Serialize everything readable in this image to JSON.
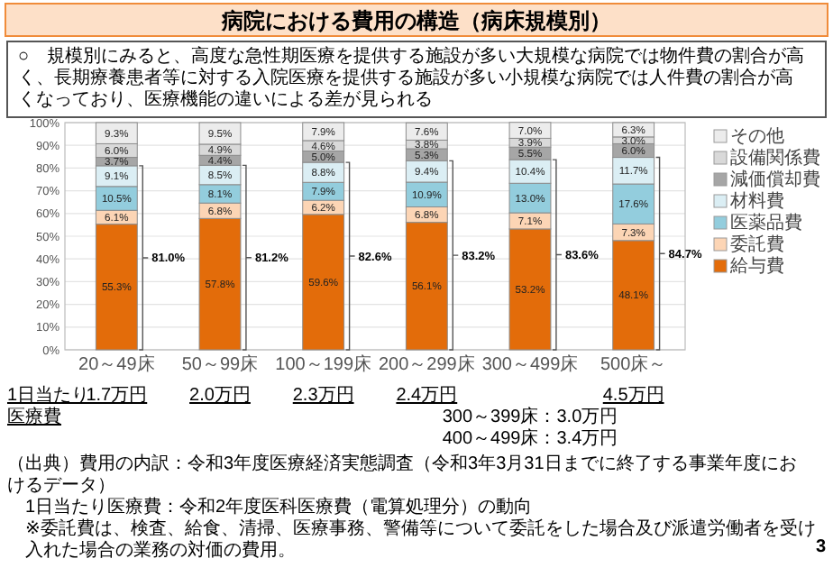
{
  "chart_data": {
    "type": "bar",
    "stacked": true,
    "title": "病院における費用の構造（病床規模別）",
    "subtitle": "○　規模別にみると、高度な急性期医療を提供する施設が多い大規模な病院では物件費の割合が高く、長期療養患者等に対する入院医療を提供する施設が多い小規模な病院では人件費の割合が高くなっており、医療機能の違いによる差が見られる",
    "categories": [
      "20～49床",
      "50～99床",
      "100～199床",
      "200～299床",
      "300～499床",
      "500床～"
    ],
    "series": [
      {
        "name": "給与費",
        "color": "#e36c0a",
        "values": [
          55.3,
          57.8,
          59.6,
          56.1,
          53.2,
          48.1
        ],
        "value_labels": [
          "55.3%",
          "57.8%",
          "59.6%",
          "56.1%",
          "53.2%",
          "48.1%"
        ]
      },
      {
        "name": "委託費",
        "color": "#fcd5b5",
        "values": [
          6.1,
          6.8,
          6.2,
          6.8,
          7.1,
          7.3
        ],
        "value_labels": [
          "6.1%",
          "6.8%",
          "6.2%",
          "6.8%",
          "7.1%",
          "7.3%"
        ]
      },
      {
        "name": "医薬品費",
        "color": "#93cddd",
        "values": [
          10.5,
          8.1,
          7.9,
          10.9,
          13.0,
          17.6
        ],
        "value_labels": [
          "10.5%",
          "8.1%",
          "7.9%",
          "10.9%",
          "13.0%",
          "17.6%"
        ]
      },
      {
        "name": "材料費",
        "color": "#dbeef4",
        "values": [
          9.1,
          8.5,
          8.8,
          9.4,
          10.4,
          11.7
        ],
        "value_labels": [
          "9.1%",
          "8.5%",
          "8.8%",
          "9.4%",
          "10.4%",
          "11.7%"
        ]
      },
      {
        "name": "減価償却費",
        "color": "#a6a6a6",
        "values": [
          3.7,
          4.4,
          5.0,
          5.3,
          5.5,
          6.0
        ],
        "value_labels": [
          "3.7%",
          "4.4%",
          "5.0%",
          "5.3%",
          "5.5%",
          "6.0%"
        ]
      },
      {
        "name": "設備関係費",
        "color": "#d9d9d9",
        "values": [
          6.0,
          4.9,
          4.6,
          3.8,
          3.9,
          3.0
        ],
        "value_labels": [
          "6.0%",
          "4.9%",
          "4.6%",
          "3.8%",
          "3.9%",
          "3.0%"
        ]
      },
      {
        "name": "その他",
        "color": "#ececec",
        "values": [
          9.3,
          9.5,
          7.9,
          7.6,
          7.0,
          6.3
        ],
        "value_labels": [
          "9.3%",
          "9.5%",
          "7.9%",
          "7.6%",
          "7.0%",
          "6.3%"
        ]
      }
    ],
    "ylim": [
      0,
      100
    ],
    "yticks": [
      {
        "value": 0,
        "label": "0%"
      },
      {
        "value": 10,
        "label": "10%"
      },
      {
        "value": 20,
        "label": "20%"
      },
      {
        "value": 30,
        "label": "30%"
      },
      {
        "value": 40,
        "label": "40%"
      },
      {
        "value": 50,
        "label": "50%"
      },
      {
        "value": 60,
        "label": "60%"
      },
      {
        "value": 70,
        "label": "70%"
      },
      {
        "value": 80,
        "label": "80%"
      },
      {
        "value": 90,
        "label": "90%"
      },
      {
        "value": 100,
        "label": "100%"
      }
    ],
    "grid": "y",
    "legend": "right",
    "annotations": [
      "81.0%",
      "81.2%",
      "82.6%",
      "83.2%",
      "83.6%",
      "84.7%",
      "1日当たり医療費",
      "1.7万円",
      "2.0万円",
      "2.3万円",
      "2.4万円",
      "300～399床：3.0万円",
      "400～499床：3.4万円",
      "4.5万円",
      "（出典）費用の内訳：令和3年度医療経済実態調査（令和3年3月31日までに終了する事業年度におけるデータ）",
      "1日当たり医療費：令和2年度医科医療費（電算処理分）の動向",
      "※委託費は、検査、給食、清掃、医療事務、警備等について委託をした場合及び派遣労働者を受け入れた場合の業務の対価の費用。",
      "3"
    ]
  }
}
